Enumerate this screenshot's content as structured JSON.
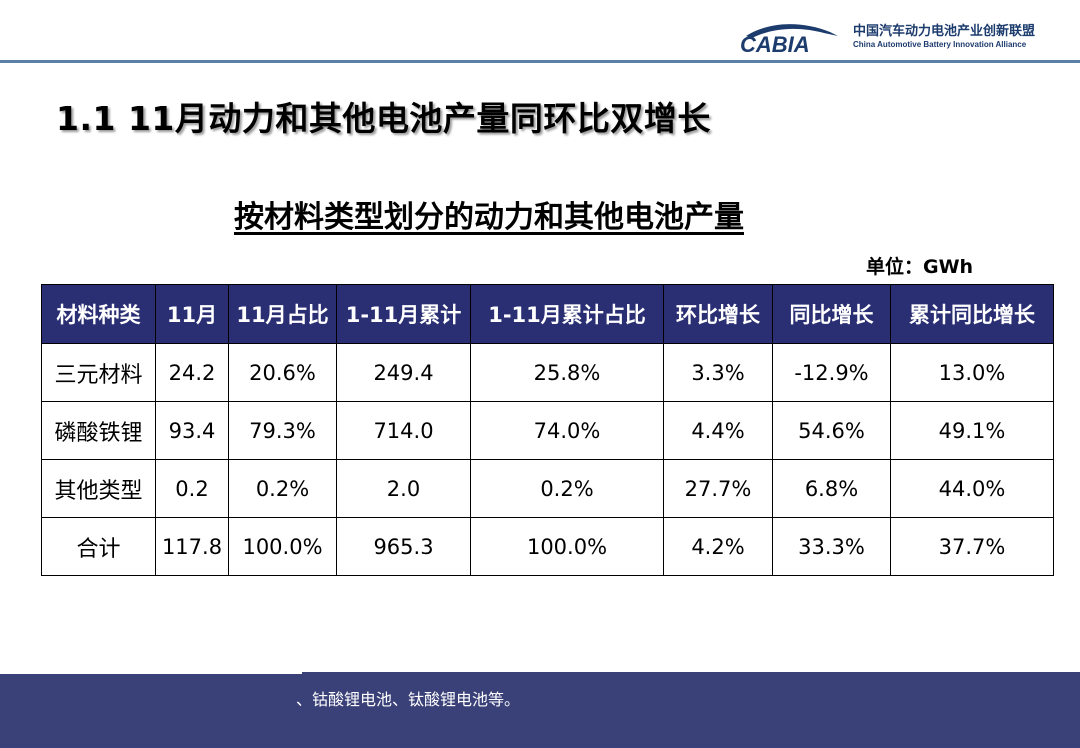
{
  "logo": {
    "wordmark": "CABIA",
    "name_cn": "中国汽车动力电池产业创新联盟",
    "name_en": "China Automotive Battery Innovation Alliance",
    "color": "#1d3c6e"
  },
  "page_title": "1.1 11月动力和其他电池产量同环比双增长",
  "table_title": "按材料类型划分的动力和其他电池产量",
  "unit": "单位：GWh",
  "table": {
    "header_color": "#2a2f74",
    "columns": [
      "材料种类",
      "11月",
      "11月占比",
      "1-11月累计",
      "1-11月累计占比",
      "环比增长",
      "同比增长",
      "累计同比增长"
    ],
    "rows": [
      [
        "三元材料",
        "24.2",
        "20.6%",
        "249.4",
        "25.8%",
        "3.3%",
        "-12.9%",
        "13.0%"
      ],
      [
        "磷酸铁锂",
        "93.4",
        "79.3%",
        "714.0",
        "74.0%",
        "4.4%",
        "54.6%",
        "49.1%"
      ],
      [
        "其他类型",
        "0.2",
        "0.2%",
        "2.0",
        "0.2%",
        "27.7%",
        "6.8%",
        "44.0%"
      ],
      [
        "合计",
        "117.8",
        "100.0%",
        "965.3",
        "100.0%",
        "4.2%",
        "33.3%",
        "37.7%"
      ]
    ]
  },
  "footer": {
    "note": "、钴酸锂电池、钛酸锂电池等。",
    "color": "#3a4078"
  }
}
